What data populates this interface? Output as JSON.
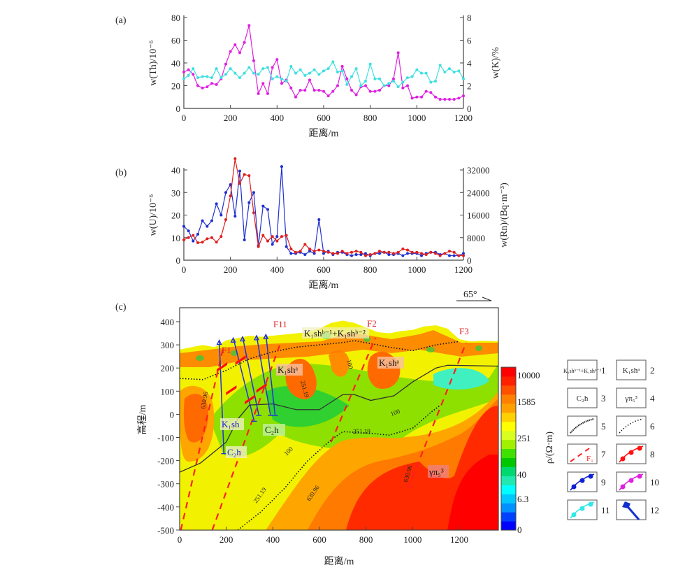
{
  "chart_data": [
    {
      "id": "a",
      "panel_label": "(a)",
      "type": "line",
      "xlabel": "距离/m",
      "ylabel": "w(Th)/10⁻⁶",
      "y2label": "w(K)/%",
      "xlim": [
        0,
        1200
      ],
      "ylim": [
        0,
        80
      ],
      "y2lim": [
        0,
        8
      ],
      "xticks": [
        "0",
        "200",
        "400",
        "600",
        "800",
        "1000",
        "1200"
      ],
      "yticks": [
        "0",
        "20",
        "40",
        "60",
        "80"
      ],
      "y2ticks": [
        "0",
        "2",
        "4",
        "6",
        "8"
      ],
      "x_step": 20,
      "series": [
        {
          "name": "Th",
          "axis": "left",
          "color": "#e020e0",
          "values": [
            32,
            34,
            30,
            20,
            18,
            19,
            22,
            21,
            26,
            39,
            50,
            56,
            49,
            58,
            73,
            42,
            13,
            22,
            13,
            36,
            43,
            22,
            25,
            18,
            10,
            16,
            16,
            25,
            16,
            16,
            15,
            11,
            15,
            20,
            37,
            26,
            16,
            12,
            19,
            20,
            15,
            15,
            16,
            20,
            20,
            26,
            49,
            18,
            20,
            9,
            10,
            10,
            15,
            14,
            10,
            8,
            8,
            8,
            8,
            9,
            11
          ]
        },
        {
          "name": "K",
          "axis": "right",
          "color": "#40e0e0",
          "values": [
            2.6,
            2.9,
            3.5,
            2.7,
            2.8,
            2.8,
            2.7,
            3.5,
            2.7,
            3.0,
            3.5,
            3.1,
            2.7,
            3.1,
            3.6,
            3.1,
            3.0,
            3.5,
            3.6,
            2.6,
            2.8,
            2.6,
            2.4,
            3.7,
            3.1,
            3.4,
            2.9,
            3.1,
            3.4,
            3.0,
            3.3,
            3.5,
            4.1,
            3.2,
            3.3,
            2.1,
            2.8,
            3.5,
            2.0,
            2.4,
            3.9,
            2.6,
            2.6,
            2.0,
            2.2,
            2.4,
            1.9,
            2.3,
            2.7,
            2.8,
            3.4,
            3.1,
            3.1,
            2.3,
            2.4,
            3.8,
            3.2,
            3.5,
            3.2,
            3.3,
            2.6
          ]
        }
      ]
    },
    {
      "id": "b",
      "panel_label": "(b)",
      "type": "line",
      "xlabel": "距离/m",
      "ylabel": "w(U)/10⁻⁶",
      "y2label": "w(Rn)/(Bq·m⁻³)",
      "xlim": [
        0,
        1200
      ],
      "ylim": [
        0,
        40
      ],
      "y2lim": [
        0,
        32000
      ],
      "xticks": [
        "0",
        "200",
        "400",
        "600",
        "800",
        "1000",
        "1200"
      ],
      "yticks": [
        "0",
        "10",
        "20",
        "30",
        "40"
      ],
      "y2ticks": [
        "0",
        "8000",
        "16000",
        "24000",
        "32000"
      ],
      "x_step": 20,
      "series": [
        {
          "name": "U",
          "axis": "left",
          "color": "#2030d0",
          "values": [
            15,
            13,
            8.5,
            11.5,
            17.5,
            15,
            17.5,
            25,
            20,
            30,
            33.5,
            19.5,
            39.5,
            9,
            25.5,
            30,
            6.5,
            24,
            22.5,
            7,
            10.5,
            41.5,
            6,
            3,
            3,
            3.5,
            2.5,
            4,
            3,
            18,
            3,
            4,
            2.5,
            3.5,
            3.5,
            2.5,
            2,
            2.5,
            2.5,
            3,
            2,
            3,
            3,
            3.5,
            2.5,
            2.5,
            3,
            2,
            3,
            3,
            3,
            2,
            3,
            3.5,
            3.5,
            2.5,
            3,
            2,
            2,
            2,
            3
          ]
        },
        {
          "name": "Rn",
          "axis": "right",
          "color": "#e02020",
          "values": [
            7200,
            8000,
            8800,
            6200,
            6400,
            7600,
            8000,
            6400,
            8400,
            14400,
            22800,
            36000,
            27200,
            30400,
            30000,
            16800,
            4800,
            8800,
            6800,
            8400,
            6800,
            8400,
            8800,
            4000,
            2800,
            3200,
            5600,
            4000,
            3200,
            3600,
            3200,
            2800,
            2400,
            2400,
            3200,
            2400,
            2800,
            3200,
            2800,
            1600,
            2000,
            2400,
            3200,
            2800,
            2800,
            2400,
            2800,
            4000,
            3600,
            2800,
            2800,
            2400,
            2000,
            2800,
            2400,
            1600,
            2400,
            3200,
            2800,
            1600,
            1600
          ]
        }
      ]
    },
    {
      "id": "c",
      "panel_label": "(c)",
      "type": "heatmap",
      "xlabel": "距离/m",
      "ylabel": "高程/m",
      "colorbar_label": "ρ/(Ω·m)",
      "xlim": [
        0,
        1380
      ],
      "ylim": [
        -500,
        400
      ],
      "xticks": [
        "0",
        "200",
        "400",
        "600",
        "800",
        "1000",
        "1200"
      ],
      "yticks": [
        "400",
        "300",
        "200",
        "100",
        "0",
        "-100",
        "-200",
        "-300",
        "-400",
        "-500"
      ],
      "colorbar_ticks": [
        "10000",
        "1585",
        "251",
        "40",
        "6.3",
        "0"
      ],
      "colorbar_colors": [
        "#0000ff",
        "#0040ff",
        "#0090ff",
        "#00c8ff",
        "#00ffff",
        "#20e8b0",
        "#00d870",
        "#00c800",
        "#40e000",
        "#a0f000",
        "#d8ff20",
        "#ffff00",
        "#ffd000",
        "#ffa000",
        "#ff8000",
        "#ff5000",
        "#ff2000",
        "#ff0000"
      ],
      "direction": "65°",
      "faults": [
        "F1",
        "F11",
        "F2",
        "F3"
      ],
      "units": {
        "k1shb": "K₁shᵇ⁻¹+K₁shᵇ⁻²",
        "k1sha": "K₁shᵃ",
        "c2h": "C₂h",
        "k1sh": "K₁sh",
        "gamma": "γπ₅³"
      },
      "contour_labels": [
        "100",
        "251.19",
        "630.96"
      ]
    }
  ],
  "legend": [
    {
      "num": "1",
      "label": "K₁shᵇ⁻¹+K₁shᵇ⁻²"
    },
    {
      "num": "2",
      "label": "K₁shᵃ"
    },
    {
      "num": "3",
      "label": "C₂h"
    },
    {
      "num": "4",
      "label": "γπ₅³"
    },
    {
      "num": "5",
      "label": ""
    },
    {
      "num": "6",
      "label": ""
    },
    {
      "num": "7",
      "label": "F₁"
    },
    {
      "num": "8",
      "label": ""
    },
    {
      "num": "9",
      "label": ""
    },
    {
      "num": "10",
      "label": ""
    },
    {
      "num": "11",
      "label": ""
    },
    {
      "num": "12",
      "label": ""
    }
  ]
}
